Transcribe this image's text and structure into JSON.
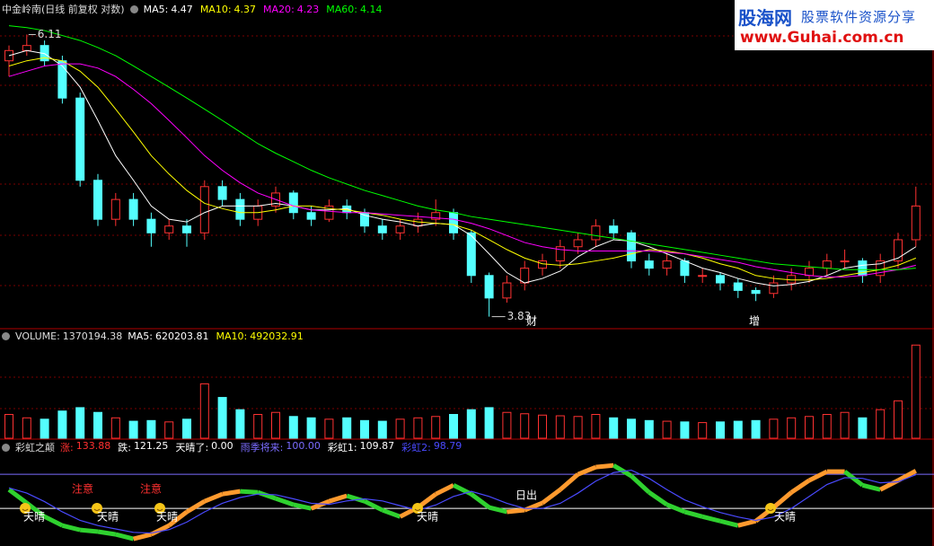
{
  "chart_data": [
    {
      "type": "candlestick",
      "title": "中金岭南(日线 前复权 对数)",
      "log_scale": true,
      "ylim": [
        3.76,
        6.28
      ],
      "up_color": "#ff3232",
      "down_color": "#54ffff",
      "candles": [
        [
          5.85,
          5.95,
          6.0,
          5.7
        ],
        [
          5.95,
          6.0,
          6.11,
          5.9
        ],
        [
          6.0,
          5.85,
          6.05,
          5.8
        ],
        [
          5.85,
          5.5,
          5.9,
          5.45
        ],
        [
          5.5,
          4.8,
          5.55,
          4.75
        ],
        [
          4.8,
          4.5,
          4.85,
          4.45
        ],
        [
          4.5,
          4.65,
          4.7,
          4.45
        ],
        [
          4.65,
          4.5,
          4.7,
          4.45
        ],
        [
          4.5,
          4.4,
          4.55,
          4.3
        ],
        [
          4.4,
          4.45,
          4.5,
          4.35
        ],
        [
          4.45,
          4.4,
          4.5,
          4.3
        ],
        [
          4.4,
          4.75,
          4.8,
          4.35
        ],
        [
          4.75,
          4.65,
          4.8,
          4.6
        ],
        [
          4.65,
          4.5,
          4.7,
          4.45
        ],
        [
          4.5,
          4.6,
          4.65,
          4.45
        ],
        [
          4.6,
          4.7,
          4.75,
          4.55
        ],
        [
          4.7,
          4.55,
          4.72,
          4.5
        ],
        [
          4.55,
          4.5,
          4.6,
          4.45
        ],
        [
          4.5,
          4.6,
          4.65,
          4.48
        ],
        [
          4.6,
          4.55,
          4.65,
          4.5
        ],
        [
          4.55,
          4.45,
          4.58,
          4.4
        ],
        [
          4.45,
          4.4,
          4.5,
          4.35
        ],
        [
          4.4,
          4.45,
          4.5,
          4.35
        ],
        [
          4.45,
          4.5,
          4.55,
          4.4
        ],
        [
          4.5,
          4.55,
          4.65,
          4.45
        ],
        [
          4.55,
          4.4,
          4.58,
          4.35
        ],
        [
          4.4,
          4.1,
          4.42,
          4.05
        ],
        [
          4.1,
          3.95,
          4.12,
          3.83
        ],
        [
          3.95,
          4.05,
          4.1,
          3.92
        ],
        [
          4.05,
          4.15,
          4.2,
          4.0
        ],
        [
          4.15,
          4.2,
          4.25,
          4.1
        ],
        [
          4.2,
          4.3,
          4.35,
          4.15
        ],
        [
          4.3,
          4.35,
          4.4,
          4.25
        ],
        [
          4.35,
          4.45,
          4.5,
          4.3
        ],
        [
          4.45,
          4.4,
          4.5,
          4.35
        ],
        [
          4.4,
          4.2,
          4.42,
          4.15
        ],
        [
          4.2,
          4.15,
          4.25,
          4.1
        ],
        [
          4.15,
          4.2,
          4.25,
          4.1
        ],
        [
          4.2,
          4.1,
          4.22,
          4.05
        ],
        [
          4.1,
          4.1,
          4.15,
          4.05
        ],
        [
          4.1,
          4.05,
          4.12,
          4.0
        ],
        [
          4.05,
          4.0,
          4.08,
          3.95
        ],
        [
          4.0,
          3.98,
          4.02,
          3.93
        ],
        [
          3.98,
          4.05,
          4.1,
          3.95
        ],
        [
          4.05,
          4.1,
          4.15,
          4.0
        ],
        [
          4.1,
          4.15,
          4.2,
          4.05
        ],
        [
          4.15,
          4.2,
          4.25,
          4.1
        ],
        [
          4.2,
          4.2,
          4.28,
          4.15
        ],
        [
          4.2,
          4.1,
          4.22,
          4.05
        ],
        [
          4.1,
          4.2,
          4.25,
          4.05
        ],
        [
          4.2,
          4.35,
          4.4,
          4.15
        ],
        [
          4.35,
          4.6,
          4.75,
          4.3
        ]
      ],
      "series": [
        {
          "name": "MA5",
          "value": 4.47,
          "color": "#ffffff",
          "values": [
            5.9,
            5.95,
            5.92,
            5.8,
            5.6,
            5.3,
            5.0,
            4.8,
            4.6,
            4.5,
            4.48,
            4.55,
            4.6,
            4.6,
            4.6,
            4.62,
            4.6,
            4.57,
            4.57,
            4.58,
            4.53,
            4.5,
            4.48,
            4.45,
            4.47,
            4.46,
            4.38,
            4.25,
            4.12,
            4.05,
            4.08,
            4.13,
            4.23,
            4.3,
            4.35,
            4.34,
            4.3,
            4.25,
            4.2,
            4.15,
            4.12,
            4.08,
            4.05,
            4.03,
            4.04,
            4.06,
            4.1,
            4.15,
            4.17,
            4.18,
            4.22,
            4.3
          ]
        },
        {
          "name": "MA10",
          "value": 4.37,
          "color": "#ffff00",
          "values": [
            5.8,
            5.85,
            5.88,
            5.85,
            5.75,
            5.6,
            5.4,
            5.2,
            5.0,
            4.85,
            4.72,
            4.62,
            4.58,
            4.55,
            4.55,
            4.57,
            4.6,
            4.6,
            4.58,
            4.57,
            4.55,
            4.53,
            4.5,
            4.48,
            4.47,
            4.46,
            4.42,
            4.35,
            4.28,
            4.22,
            4.18,
            4.17,
            4.18,
            4.2,
            4.22,
            4.25,
            4.28,
            4.27,
            4.25,
            4.22,
            4.18,
            4.15,
            4.1,
            4.08,
            4.07,
            4.07,
            4.08,
            4.1,
            4.12,
            4.14,
            4.17,
            4.22
          ]
        },
        {
          "name": "MA20",
          "value": 4.23,
          "color": "#ff00ff",
          "values": [
            5.7,
            5.75,
            5.8,
            5.82,
            5.82,
            5.78,
            5.7,
            5.58,
            5.45,
            5.3,
            5.15,
            5.0,
            4.88,
            4.78,
            4.7,
            4.65,
            4.6,
            4.57,
            4.56,
            4.55,
            4.55,
            4.54,
            4.53,
            4.52,
            4.51,
            4.5,
            4.47,
            4.43,
            4.38,
            4.33,
            4.3,
            4.28,
            4.27,
            4.27,
            4.27,
            4.27,
            4.27,
            4.26,
            4.25,
            4.23,
            4.21,
            4.19,
            4.16,
            4.14,
            4.12,
            4.1,
            4.09,
            4.09,
            4.1,
            4.12,
            4.14,
            4.17
          ]
        },
        {
          "name": "MA60",
          "value": 4.14,
          "color": "#00ff00",
          "values": [
            6.2,
            6.18,
            6.15,
            6.1,
            6.05,
            5.98,
            5.9,
            5.8,
            5.7,
            5.6,
            5.5,
            5.4,
            5.3,
            5.2,
            5.1,
            5.02,
            4.95,
            4.88,
            4.82,
            4.77,
            4.72,
            4.68,
            4.64,
            4.6,
            4.57,
            4.55,
            4.52,
            4.5,
            4.48,
            4.46,
            4.44,
            4.42,
            4.4,
            4.38,
            4.36,
            4.34,
            4.32,
            4.3,
            4.28,
            4.26,
            4.24,
            4.22,
            4.2,
            4.18,
            4.17,
            4.16,
            4.15,
            4.14,
            4.14,
            4.14,
            4.14,
            4.15
          ]
        }
      ],
      "annotations": [
        "财",
        "增"
      ]
    },
    {
      "type": "bar",
      "title": "VOLUME",
      "value": 1370194.38,
      "ylim": [
        0,
        1400000
      ],
      "values": [
        350000,
        300000,
        280000,
        400000,
        450000,
        380000,
        300000,
        250000,
        260000,
        240000,
        280000,
        800000,
        600000,
        420000,
        350000,
        380000,
        320000,
        300000,
        280000,
        300000,
        260000,
        250000,
        280000,
        300000,
        320000,
        350000,
        420000,
        450000,
        380000,
        360000,
        340000,
        330000,
        320000,
        350000,
        300000,
        280000,
        260000,
        250000,
        240000,
        230000,
        240000,
        250000,
        260000,
        280000,
        300000,
        320000,
        350000,
        380000,
        300000,
        420000,
        550000,
        1370194.38
      ],
      "legend": [
        {
          "name": "MA5",
          "value": 620203.81,
          "color": "#ffffff"
        },
        {
          "name": "MA10",
          "value": 492032.91,
          "color": "#ffff00"
        }
      ]
    },
    {
      "type": "line",
      "title": "彩虹之颠",
      "ylim": [
        -110,
        174
      ],
      "legend": [
        {
          "name": "涨",
          "value": 133.88,
          "color": "#ff3030"
        },
        {
          "name": "跌",
          "value": 121.25,
          "color": "#ffffff"
        },
        {
          "name": "天晴了",
          "value": 0,
          "value_label": "0.00",
          "color": "#ffffff",
          "hline": true
        },
        {
          "name": "雨季将来",
          "value": 100,
          "value_label": "100.00",
          "color": "#7b6cff",
          "hline": true
        }
      ],
      "up_color": "#ff9a2e",
      "down_color": "#2fd12f",
      "series": [
        {
          "name": "彩虹1",
          "value": 109.87,
          "color": "#ffffff",
          "values": [
            55,
            16,
            -24,
            -50,
            -63,
            -68,
            -76,
            -89,
            -76,
            -50,
            -10,
            21,
            42,
            50,
            47,
            29,
            11,
            0,
            21,
            37,
            21,
            -5,
            -24,
            3,
            42,
            68,
            42,
            3,
            -10,
            -5,
            16,
            55,
            100,
            121,
            126,
            95,
            47,
            11,
            -10,
            -24,
            -37,
            -50,
            -37,
            3,
            47,
            82,
            108,
            108,
            68,
            55,
            82,
            110
          ]
        },
        {
          "name": "彩虹2",
          "value": 98.79,
          "color": "#4a4aff",
          "values": [
            60,
            45,
            20,
            -10,
            -35,
            -50,
            -60,
            -70,
            -72,
            -62,
            -40,
            -10,
            15,
            32,
            42,
            40,
            28,
            15,
            12,
            22,
            28,
            22,
            8,
            -5,
            10,
            35,
            50,
            35,
            15,
            0,
            0,
            15,
            45,
            80,
            105,
            112,
            88,
            55,
            25,
            5,
            -12,
            -25,
            -35,
            -25,
            0,
            35,
            70,
            90,
            88,
            75,
            78,
            99
          ]
        }
      ],
      "annotations": [
        "注意",
        "注意",
        "天晴",
        "天晴",
        "天晴",
        "天晴",
        "天晴",
        "日出"
      ]
    }
  ],
  "watermark": {
    "logo": "股海网",
    "slogan": "股票软件资源分享",
    "url": "www.Guhai.com.cn"
  }
}
